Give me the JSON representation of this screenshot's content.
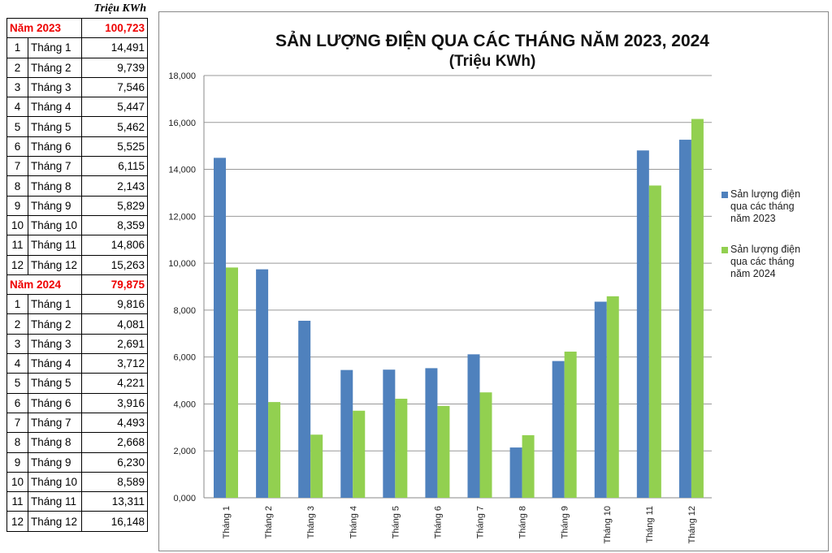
{
  "table": {
    "unit": "Triệu KWh",
    "groups": [
      {
        "label": "Năm 2023",
        "total": "100,723",
        "rows": [
          {
            "n": "1",
            "month": "Tháng 1",
            "value": "14,491"
          },
          {
            "n": "2",
            "month": "Tháng 2",
            "value": "9,739"
          },
          {
            "n": "3",
            "month": "Tháng 3",
            "value": "7,546"
          },
          {
            "n": "4",
            "month": "Tháng 4",
            "value": "5,447"
          },
          {
            "n": "5",
            "month": "Tháng 5",
            "value": "5,462"
          },
          {
            "n": "6",
            "month": "Tháng 6",
            "value": "5,525"
          },
          {
            "n": "7",
            "month": "Tháng 7",
            "value": "6,115"
          },
          {
            "n": "8",
            "month": "Tháng 8",
            "value": "2,143"
          },
          {
            "n": "9",
            "month": "Tháng 9",
            "value": "5,829"
          },
          {
            "n": "10",
            "month": "Tháng 10",
            "value": "8,359"
          },
          {
            "n": "11",
            "month": "Tháng 11",
            "value": "14,806"
          },
          {
            "n": "12",
            "month": "Tháng 12",
            "value": "15,263"
          }
        ]
      },
      {
        "label": "Năm 2024",
        "total": "79,875",
        "rows": [
          {
            "n": "1",
            "month": "Tháng 1",
            "value": "9,816"
          },
          {
            "n": "2",
            "month": "Tháng 2",
            "value": "4,081"
          },
          {
            "n": "3",
            "month": "Tháng 3",
            "value": "2,691"
          },
          {
            "n": "4",
            "month": "Tháng 4",
            "value": "3,712"
          },
          {
            "n": "5",
            "month": "Tháng 5",
            "value": "4,221"
          },
          {
            "n": "6",
            "month": "Tháng 6",
            "value": "3,916"
          },
          {
            "n": "7",
            "month": "Tháng 7",
            "value": "4,493"
          },
          {
            "n": "8",
            "month": "Tháng 8",
            "value": "2,668"
          },
          {
            "n": "9",
            "month": "Tháng 9",
            "value": "6,230"
          },
          {
            "n": "10",
            "month": "Tháng 10",
            "value": "8,589"
          },
          {
            "n": "11",
            "month": "Tháng 11",
            "value": "13,311"
          },
          {
            "n": "12",
            "month": "Tháng 12",
            "value": "16,148"
          }
        ]
      }
    ]
  },
  "chart_data": {
    "type": "bar",
    "title": "SẢN LƯỢNG ĐIỆN QUA CÁC THÁNG NĂM 2023, 2024",
    "subtitle": "(Triệu KWh)",
    "categories": [
      "Tháng 1",
      "Tháng 2",
      "Tháng 3",
      "Tháng 4",
      "Tháng 5",
      "Tháng 6",
      "Tháng 7",
      "Tháng 8",
      "Tháng 9",
      "Tháng 10",
      "Tháng 11",
      "Tháng 12"
    ],
    "series": [
      {
        "name": "Sản lượng điện qua các tháng năm 2023",
        "legend_lines": [
          "Sản lượng điện",
          "qua các tháng",
          "năm 2023"
        ],
        "color": "#4f81bd",
        "values": [
          14491,
          9739,
          7546,
          5447,
          5462,
          5525,
          6115,
          2143,
          5829,
          8359,
          14806,
          15263
        ]
      },
      {
        "name": "Sản lượng điện qua các tháng năm 2024",
        "legend_lines": [
          "Sản lượng điện",
          "qua các tháng",
          "năm 2024"
        ],
        "color": "#92d050",
        "values": [
          9816,
          4081,
          2691,
          3712,
          4221,
          3916,
          4493,
          2668,
          6230,
          8589,
          13311,
          16148
        ]
      }
    ],
    "ylim": [
      0,
      18000
    ],
    "yticks": [
      0,
      2000,
      4000,
      6000,
      8000,
      10000,
      12000,
      14000,
      16000,
      18000
    ],
    "ytick_labels": [
      "0,000",
      "2,000",
      "4,000",
      "6,000",
      "8,000",
      "10,000",
      "12,000",
      "14,000",
      "16,000",
      "18,000"
    ],
    "grid": true,
    "legend": "right"
  }
}
